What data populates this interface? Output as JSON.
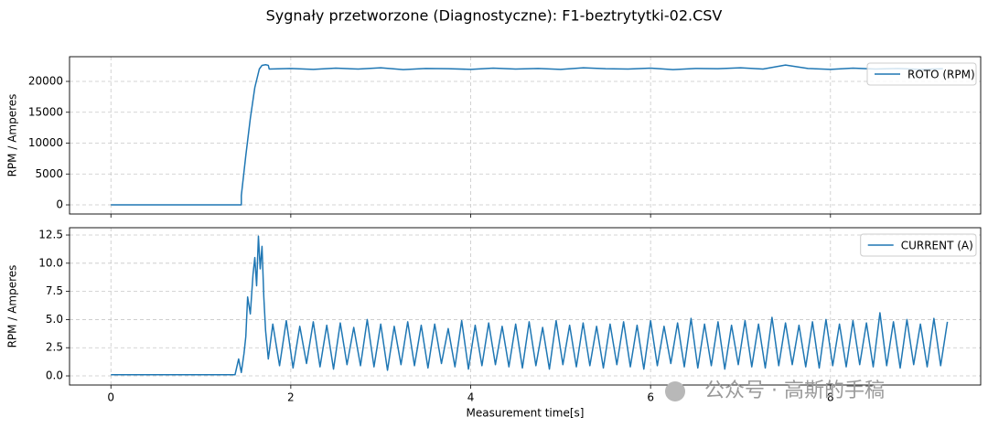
{
  "title": "Sygnały przetworzone (Diagnostyczne): F1-beztrytytki-02.CSV",
  "watermark": "公众号 · 高斯的手稿",
  "chart_data": [
    {
      "type": "line",
      "ylabel": "RPM / Amperes",
      "grid": true,
      "legend": "upper right",
      "xlim": [
        -0.46,
        9.67
      ],
      "xticks": [
        0,
        2,
        4,
        6,
        8
      ],
      "ylim": [
        -1480,
        24000
      ],
      "yticks": [
        0,
        5000,
        10000,
        15000,
        20000
      ],
      "series": [
        {
          "name": "ROTO (RPM)",
          "color": "#1f77b4",
          "x": [
            0,
            1.45,
            1.45,
            1.5,
            1.55,
            1.6,
            1.65,
            1.68,
            1.72,
            1.75,
            1.76,
            2.0,
            2.25,
            2.5,
            2.75,
            3.0,
            3.25,
            3.5,
            3.75,
            4.0,
            4.25,
            4.5,
            4.75,
            5.0,
            5.25,
            5.5,
            5.75,
            6.0,
            6.25,
            6.5,
            6.75,
            7.0,
            7.25,
            7.5,
            7.75,
            8.0,
            8.25,
            8.5,
            8.75,
            9.0,
            9.25
          ],
          "values": [
            0,
            0,
            1500,
            8000,
            14000,
            19000,
            22000,
            22600,
            22700,
            22600,
            22000,
            22100,
            21950,
            22150,
            22000,
            22200,
            21900,
            22100,
            22050,
            21950,
            22150,
            22000,
            22100,
            21950,
            22200,
            22050,
            22000,
            22150,
            21900,
            22100,
            22050,
            22200,
            22000,
            22650,
            22100,
            21950,
            22150,
            22000,
            22100,
            21950,
            22050
          ]
        }
      ]
    },
    {
      "type": "line",
      "ylabel": "RPM / Amperes",
      "xlabel": "Measurement time[s]",
      "grid": true,
      "legend": "upper right",
      "xlim": [
        -0.46,
        9.67
      ],
      "xticks": [
        0,
        2,
        4,
        6,
        8
      ],
      "ylim": [
        -0.81,
        13.15
      ],
      "yticks": [
        {
          "value": 0,
          "label": "0.0"
        },
        2.5,
        {
          "value": 5,
          "label": "5.0"
        },
        7.5,
        {
          "value": 10,
          "label": "10.0"
        },
        12.5
      ],
      "series": [
        {
          "name": "CURRENT (A)",
          "color": "#1f77b4",
          "x": [
            0,
            0.5,
            1.0,
            1.38,
            1.42,
            1.45,
            1.48,
            1.5,
            1.52,
            1.55,
            1.58,
            1.6,
            1.62,
            1.64,
            1.66,
            1.68,
            1.7,
            1.72,
            1.75,
            1.8,
            1.875,
            1.95,
            2.025,
            2.1,
            2.175,
            2.25,
            2.325,
            2.4,
            2.475,
            2.55,
            2.625,
            2.7,
            2.775,
            2.85,
            2.925,
            3.0,
            3.075,
            3.15,
            3.225,
            3.3,
            3.375,
            3.45,
            3.525,
            3.6,
            3.675,
            3.75,
            3.825,
            3.9,
            3.975,
            4.05,
            4.125,
            4.2,
            4.275,
            4.35,
            4.425,
            4.5,
            4.575,
            4.65,
            4.725,
            4.8,
            4.875,
            4.95,
            5.025,
            5.1,
            5.175,
            5.25,
            5.325,
            5.4,
            5.475,
            5.55,
            5.625,
            5.7,
            5.775,
            5.85,
            5.925,
            6.0,
            6.075,
            6.15,
            6.225,
            6.3,
            6.375,
            6.45,
            6.525,
            6.6,
            6.675,
            6.75,
            6.825,
            6.9,
            6.975,
            7.05,
            7.125,
            7.2,
            7.275,
            7.35,
            7.425,
            7.5,
            7.575,
            7.65,
            7.725,
            7.8,
            7.875,
            7.95,
            8.025,
            8.1,
            8.175,
            8.25,
            8.325,
            8.4,
            8.475,
            8.55,
            8.625,
            8.7,
            8.775,
            8.85,
            8.925,
            9.0,
            9.075,
            9.15,
            9.225,
            9.3
          ],
          "values": [
            0.1,
            0.1,
            0.1,
            0.1,
            1.5,
            0.3,
            2.0,
            3.5,
            7.0,
            5.5,
            9.0,
            10.5,
            8.0,
            12.4,
            9.5,
            11.5,
            7.0,
            4.0,
            1.5,
            4.6,
            0.9,
            4.9,
            0.7,
            4.4,
            1.1,
            4.8,
            0.8,
            4.5,
            0.6,
            4.7,
            1.0,
            4.3,
            0.9,
            5.0,
            0.8,
            4.6,
            0.5,
            4.4,
            1.0,
            4.8,
            0.9,
            4.5,
            0.7,
            4.6,
            1.1,
            4.2,
            0.8,
            4.9,
            0.6,
            4.5,
            0.9,
            4.7,
            1.0,
            4.4,
            0.8,
            4.6,
            0.7,
            4.8,
            0.9,
            4.3,
            0.6,
            4.9,
            1.0,
            4.5,
            0.8,
            4.7,
            0.9,
            4.4,
            0.7,
            4.6,
            1.0,
            4.8,
            0.8,
            4.5,
            0.6,
            4.9,
            0.9,
            4.4,
            1.1,
            4.7,
            0.8,
            5.1,
            0.7,
            4.6,
            0.9,
            4.8,
            0.6,
            4.5,
            1.0,
            4.9,
            0.8,
            4.6,
            0.7,
            5.2,
            0.9,
            4.7,
            1.0,
            4.5,
            0.8,
            4.8,
            0.7,
            5.0,
            0.9,
            4.6,
            0.8,
            4.9,
            1.0,
            4.7,
            0.8,
            5.6,
            0.9,
            4.8,
            0.7,
            5.0,
            1.0,
            4.6,
            0.8,
            5.1,
            0.9,
            4.8
          ]
        }
      ]
    }
  ]
}
